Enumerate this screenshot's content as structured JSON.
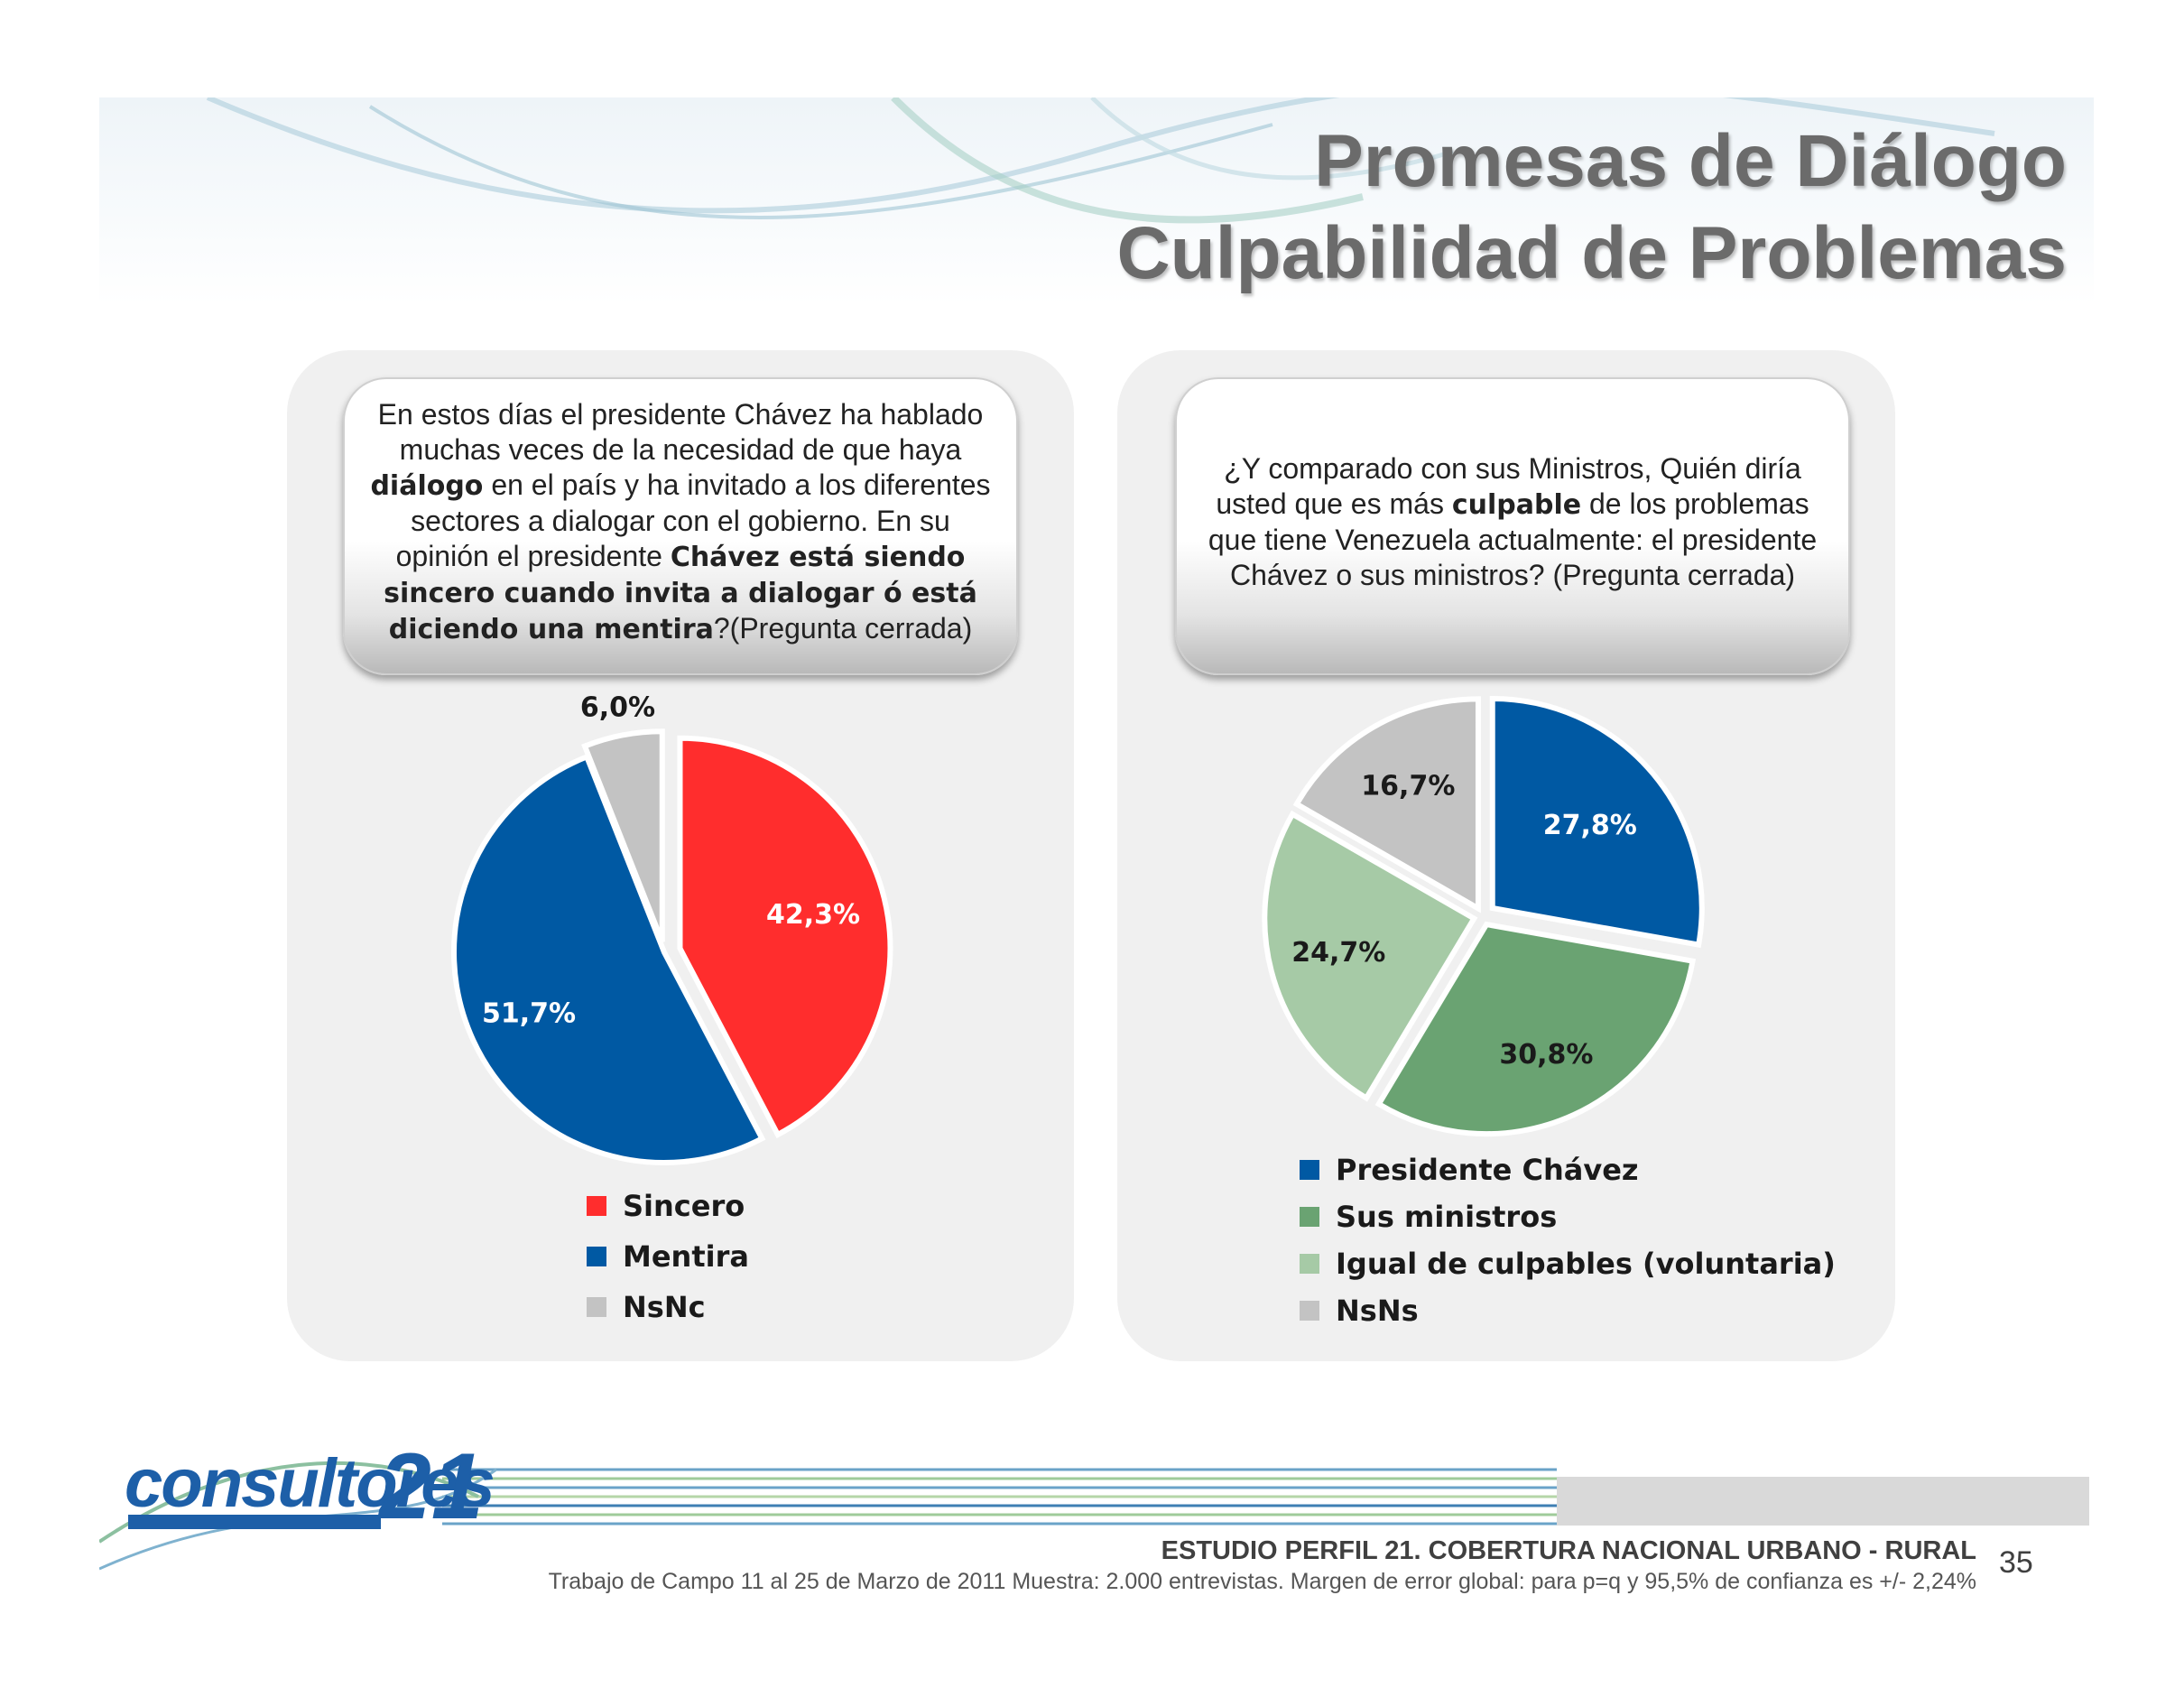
{
  "header": {
    "title_line1": "Promesas de Diálogo",
    "title_line2": "Culpabilidad de Problemas"
  },
  "left_panel": {
    "question": {
      "t1": "En estos días el presidente Chávez ha hablado muchas veces de la necesidad de que haya ",
      "b1": "diálogo",
      "t2": " en el país y ha invitado a los diferentes sectores a dialogar con el gobierno. En su opinión el presidente ",
      "b2": "Chávez está siendo sincero cuando invita a dialogar ó está diciendo una mentira",
      "t3": "?(Pregunta cerrada)"
    }
  },
  "right_panel": {
    "question": {
      "t1": "¿Y comparado con sus Ministros, Quién diría usted que es más ",
      "b1": "culpable",
      "t2": " de los problemas que tiene Venezuela actualmente: el presidente Chávez o sus ministros? (Pregunta cerrada)"
    }
  },
  "chart_data": [
    {
      "type": "pie",
      "title": "",
      "legend_position": "bottom",
      "categories": [
        "Sincero",
        "Mentira",
        "NsNc"
      ],
      "values": [
        42.3,
        51.7,
        6.0
      ],
      "labels": [
        "42,3%",
        "51,7%",
        "6,0%"
      ],
      "colors": [
        "#ff2d2d",
        "#0059a3",
        "#c3c3c3"
      ],
      "label_colors": [
        "#ffffff",
        "#ffffff",
        "#1a1a1a"
      ]
    },
    {
      "type": "pie",
      "title": "",
      "legend_position": "bottom",
      "categories": [
        "Presidente Chávez",
        "Sus ministros",
        "Igual de culpables (voluntaria)",
        "NsNs"
      ],
      "values": [
        27.8,
        30.8,
        24.7,
        16.7
      ],
      "labels": [
        "27,8%",
        "30,8%",
        "24,7%",
        "16,7%"
      ],
      "colors": [
        "#0059a3",
        "#6aa372",
        "#a6caa6",
        "#c3c3c3"
      ],
      "label_colors": [
        "#ffffff",
        "#1a1a1a",
        "#1a1a1a",
        "#1a1a1a"
      ]
    }
  ],
  "footer": {
    "logo_text": "consultores",
    "logo_number": "21",
    "study": "ESTUDIO PERFIL 21. COBERTURA NACIONAL URBANO - RURAL",
    "fieldwork": "Trabajo de Campo 11 al 25 de Marzo de 2011 Muestra: 2.000 entrevistas. Margen de error global: para p=q y 95,5% de confianza  es +/- 2,24%",
    "page": "35"
  }
}
